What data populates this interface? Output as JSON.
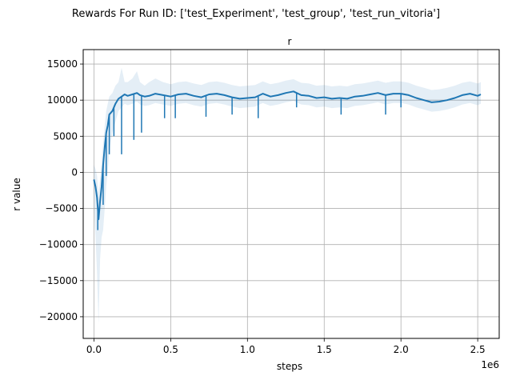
{
  "figure": {
    "suptitle": "Rewards For Run ID: ['test_Experiment', 'test_group', 'test_run_vitoria']"
  },
  "chart_data": {
    "type": "line",
    "title": "r",
    "xlabel": "steps",
    "ylabel": "r value",
    "x_offset_label": "1e6",
    "xlim": [
      -0.07,
      2.64
    ],
    "ylim": [
      -23000,
      17000
    ],
    "x_ticks": [
      0.0,
      0.5,
      1.0,
      1.5,
      2.0,
      2.5
    ],
    "x_tick_labels": [
      "0.0",
      "0.5",
      "1.0",
      "1.5",
      "2.0",
      "2.5"
    ],
    "y_ticks": [
      -20000,
      -15000,
      -10000,
      -5000,
      0,
      5000,
      10000,
      15000
    ],
    "y_tick_labels": [
      "−20000",
      "−15000",
      "−10000",
      "−5000",
      "0",
      "5000",
      "10000",
      "15000"
    ],
    "grid": true,
    "colors": {
      "line": "#1f77b4",
      "band": "#1f77b4"
    },
    "series": [
      {
        "x": [
          0.0,
          0.01,
          0.02,
          0.03,
          0.04,
          0.05,
          0.06,
          0.07,
          0.08,
          0.09,
          0.1,
          0.12,
          0.14,
          0.16,
          0.18,
          0.2,
          0.22,
          0.25,
          0.28,
          0.3,
          0.33,
          0.36,
          0.4,
          0.45,
          0.5,
          0.55,
          0.6,
          0.65,
          0.7,
          0.75,
          0.8,
          0.85,
          0.9,
          0.95,
          1.0,
          1.05,
          1.1,
          1.15,
          1.2,
          1.25,
          1.3,
          1.35,
          1.4,
          1.45,
          1.5,
          1.55,
          1.6,
          1.65,
          1.7,
          1.75,
          1.8,
          1.85,
          1.9,
          1.95,
          2.0,
          2.05,
          2.1,
          2.15,
          2.2,
          2.25,
          2.3,
          2.35,
          2.4,
          2.45,
          2.5,
          2.52
        ],
        "y": [
          -1000,
          -2000,
          -3500,
          -6500,
          -4000,
          -2000,
          1000,
          3500,
          5500,
          6500,
          8000,
          8500,
          9500,
          10200,
          10500,
          10800,
          10600,
          10800,
          11000,
          10700,
          10500,
          10600,
          10900,
          10700,
          10500,
          10800,
          10900,
          10600,
          10400,
          10800,
          10900,
          10700,
          10400,
          10200,
          10300,
          10400,
          10900,
          10500,
          10700,
          11000,
          11200,
          10700,
          10600,
          10300,
          10400,
          10200,
          10300,
          10200,
          10500,
          10600,
          10800,
          11000,
          10700,
          10900,
          10900,
          10700,
          10300,
          10000,
          9700,
          9800,
          10000,
          10300,
          10700,
          10900,
          10600,
          10800
        ],
        "spikes": [
          {
            "x": 0.025,
            "y": -8000
          },
          {
            "x": 0.06,
            "y": -4500
          },
          {
            "x": 0.08,
            "y": -500
          },
          {
            "x": 0.1,
            "y": 2500
          },
          {
            "x": 0.13,
            "y": 5000
          },
          {
            "x": 0.18,
            "y": 2500
          },
          {
            "x": 0.26,
            "y": 4500
          },
          {
            "x": 0.31,
            "y": 5500
          },
          {
            "x": 0.46,
            "y": 7500
          },
          {
            "x": 0.53,
            "y": 7500
          },
          {
            "x": 0.73,
            "y": 7700
          },
          {
            "x": 0.9,
            "y": 8000
          },
          {
            "x": 1.07,
            "y": 7500
          },
          {
            "x": 1.32,
            "y": 9000
          },
          {
            "x": 1.61,
            "y": 8000
          },
          {
            "x": 1.9,
            "y": 8000
          },
          {
            "x": 2.0,
            "y": 9000
          }
        ],
        "band_lower": [
          -5000,
          -9000,
          -14000,
          -21000,
          -12000,
          -9000,
          -8000,
          -5000,
          -2000,
          0,
          3000,
          5500,
          7000,
          8500,
          9000,
          9500,
          9300,
          9500,
          9800,
          9400,
          9200,
          9300,
          9600,
          9400,
          9200,
          9500,
          9600,
          9300,
          9100,
          9500,
          9600,
          9400,
          9100,
          8900,
          9000,
          9100,
          9600,
          9200,
          9400,
          9700,
          9900,
          9400,
          9300,
          9000,
          9100,
          8900,
          9000,
          8900,
          9200,
          9300,
          9500,
          9700,
          9400,
          9600,
          9600,
          9400,
          9000,
          8700,
          8400,
          8500,
          8700,
          9000,
          9400,
          9600,
          9300,
          9500
        ],
        "band_upper": [
          1000,
          500,
          -500,
          -3000,
          -1000,
          1500,
          4000,
          6500,
          8500,
          9500,
          10500,
          11000,
          12000,
          12500,
          14500,
          12500,
          12500,
          13000,
          14000,
          12500,
          12000,
          12500,
          13000,
          12500,
          12200,
          12500,
          12600,
          12300,
          12100,
          12500,
          12600,
          12400,
          12100,
          11900,
          12000,
          12100,
          12600,
          12200,
          12400,
          12700,
          12900,
          12400,
          12300,
          12000,
          12100,
          11900,
          12000,
          11900,
          12200,
          12300,
          12500,
          12700,
          12400,
          12600,
          12600,
          12400,
          12000,
          11700,
          11400,
          11500,
          11700,
          12000,
          12400,
          12600,
          12300,
          12500
        ]
      }
    ]
  }
}
